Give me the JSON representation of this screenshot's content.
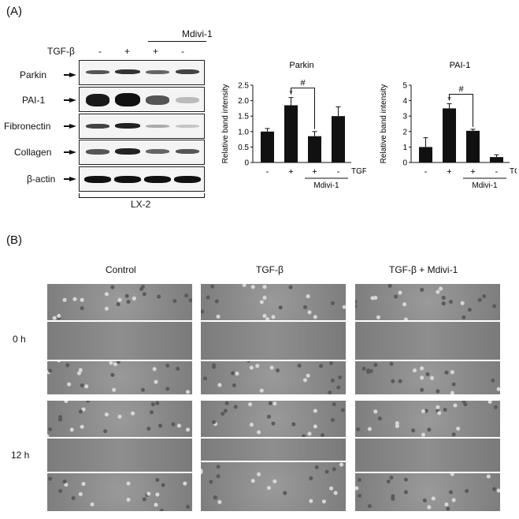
{
  "panel_a": {
    "label": "(A)",
    "treatment_label": "TGF-β",
    "treatment_signs": [
      "-",
      "+",
      "+",
      "-"
    ],
    "mdivi_label": "Mdivi-1",
    "blot_rows": [
      "Parkin",
      "PAI-1",
      "Fibronectin",
      "Collagen",
      "β-actin"
    ],
    "cell_line": "LX-2"
  },
  "panel_b": {
    "label": "(B)",
    "columns": [
      "Control",
      "TGF-β",
      "TGF-β + Mdivi-1"
    ],
    "rows": [
      "0 h",
      "12 h"
    ]
  },
  "chart_data": [
    {
      "type": "bar",
      "title": "Parkin",
      "ylabel": "Relative band intensity",
      "ylim": [
        0,
        2.5
      ],
      "yticks": [
        0,
        0.5,
        1.0,
        1.5,
        2.0,
        2.5
      ],
      "ytick_labels": [
        "0",
        "0.5",
        "1.0",
        "1.5",
        "2.0",
        "2.5"
      ],
      "categories": [
        "-",
        "+",
        "+",
        "-"
      ],
      "x_row_label": "TGF-β",
      "group_label": "Mdivi-1",
      "values": [
        1.0,
        1.85,
        0.85,
        1.5
      ],
      "errors": [
        0.1,
        0.25,
        0.15,
        0.3
      ],
      "annotations": [
        "*",
        "#"
      ]
    },
    {
      "type": "bar",
      "title": "PAI-1",
      "ylabel": "Relative band intensity",
      "ylim": [
        0,
        5
      ],
      "yticks": [
        0,
        1,
        2,
        3,
        4,
        5
      ],
      "ytick_labels": [
        "0",
        "1",
        "2",
        "3",
        "4",
        "5"
      ],
      "categories": [
        "-",
        "+",
        "+",
        "-"
      ],
      "x_row_label": "TGF-β",
      "group_label": "Mdivi-1",
      "values": [
        1.0,
        3.5,
        2.05,
        0.35
      ],
      "errors": [
        0.6,
        0.3,
        0.1,
        0.15
      ],
      "annotations": [
        "*",
        "#"
      ]
    }
  ]
}
